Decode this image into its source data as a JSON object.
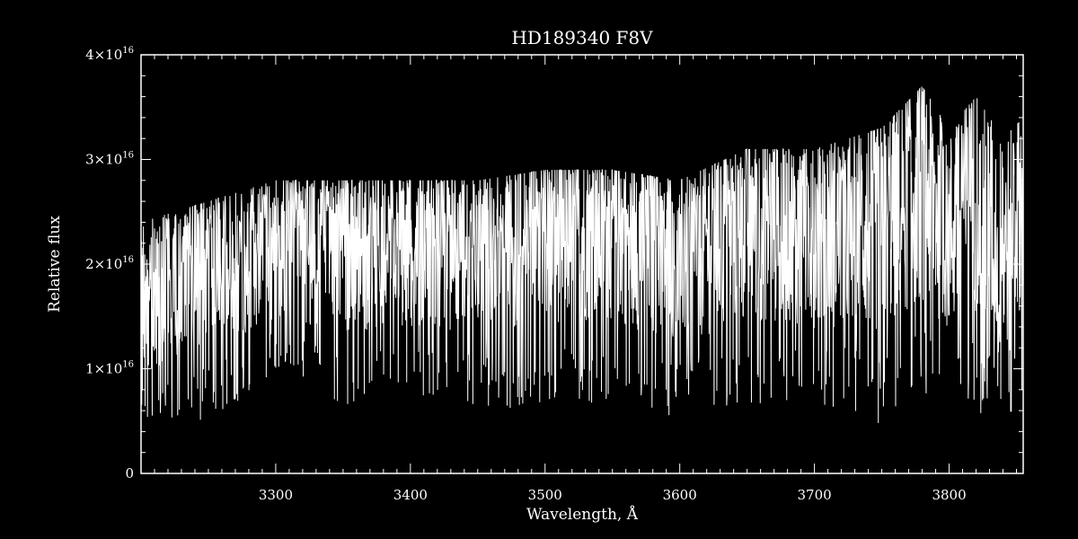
{
  "chart_data": {
    "type": "line",
    "title": "HD189340  F8V",
    "xlabel": "Wavelength, Å",
    "ylabel": "Relative flux",
    "xlim": [
      3200,
      3855
    ],
    "ylim": [
      0,
      4e+16
    ],
    "x_major_ticks": [
      3300,
      3400,
      3500,
      3600,
      3700,
      3800
    ],
    "x_tick_labels": [
      "3300",
      "3400",
      "3500",
      "3600",
      "3700",
      "3800"
    ],
    "y_major_ticks": [
      0,
      1e+16,
      2e+16,
      3e+16,
      4e+16
    ],
    "y_tick_labels": [
      {
        "mantissa": "0",
        "times": "",
        "base": "",
        "exponent": ""
      },
      {
        "mantissa": "1",
        "times": "×",
        "base": "10",
        "exponent": "16"
      },
      {
        "mantissa": "2",
        "times": "×",
        "base": "10",
        "exponent": "16"
      },
      {
        "mantissa": "3",
        "times": "×",
        "base": "10",
        "exponent": "16"
      },
      {
        "mantissa": "4",
        "times": "×",
        "base": "10",
        "exponent": "16"
      }
    ],
    "grid": false,
    "colors": {
      "background": "#000000",
      "foreground": "#ffffff"
    },
    "series": [
      {
        "name": "",
        "x_range": [
          3200,
          3855
        ],
        "envelope_wavelength": [
          3200,
          3250,
          3300,
          3350,
          3400,
          3450,
          3500,
          3550,
          3600,
          3650,
          3700,
          3750,
          3780,
          3800,
          3820,
          3840,
          3855
        ],
        "envelope_upper": [
          2.4e+16,
          2.6e+16,
          2.8e+16,
          2.8e+16,
          2.8e+16,
          2.8e+16,
          2.9e+16,
          2.9e+16,
          2.8e+16,
          3.1e+16,
          3.1e+16,
          3.3e+16,
          3.7e+16,
          3.3e+16,
          3.6e+16,
          3.2e+16,
          3.4e+16
        ],
        "envelope_lower": [
          5000000000000000.0,
          5000000000000000.0,
          9000000000000000.0,
          6000000000000000.0,
          7000000000000000.0,
          6000000000000000.0,
          6000000000000000.0,
          7000000000000000.0,
          5000000000000000.0,
          6000000000000000.0,
          7000000000000000.0,
          4000000000000000.0,
          6000000000000000.0,
          7000000000000000.0,
          5000000000000000.0,
          5000000000000000.0,
          6000000000000000.0
        ],
        "envelope_mean": [
          1.6e+16,
          1.9e+16,
          2.1e+16,
          2.1e+16,
          2.1e+16,
          2.1e+16,
          2.2e+16,
          2.2e+16,
          2e+16,
          2.3e+16,
          2.2e+16,
          2.3e+16,
          2.7e+16,
          2.2e+16,
          2.6e+16,
          2e+16,
          2.6e+16
        ]
      }
    ]
  }
}
